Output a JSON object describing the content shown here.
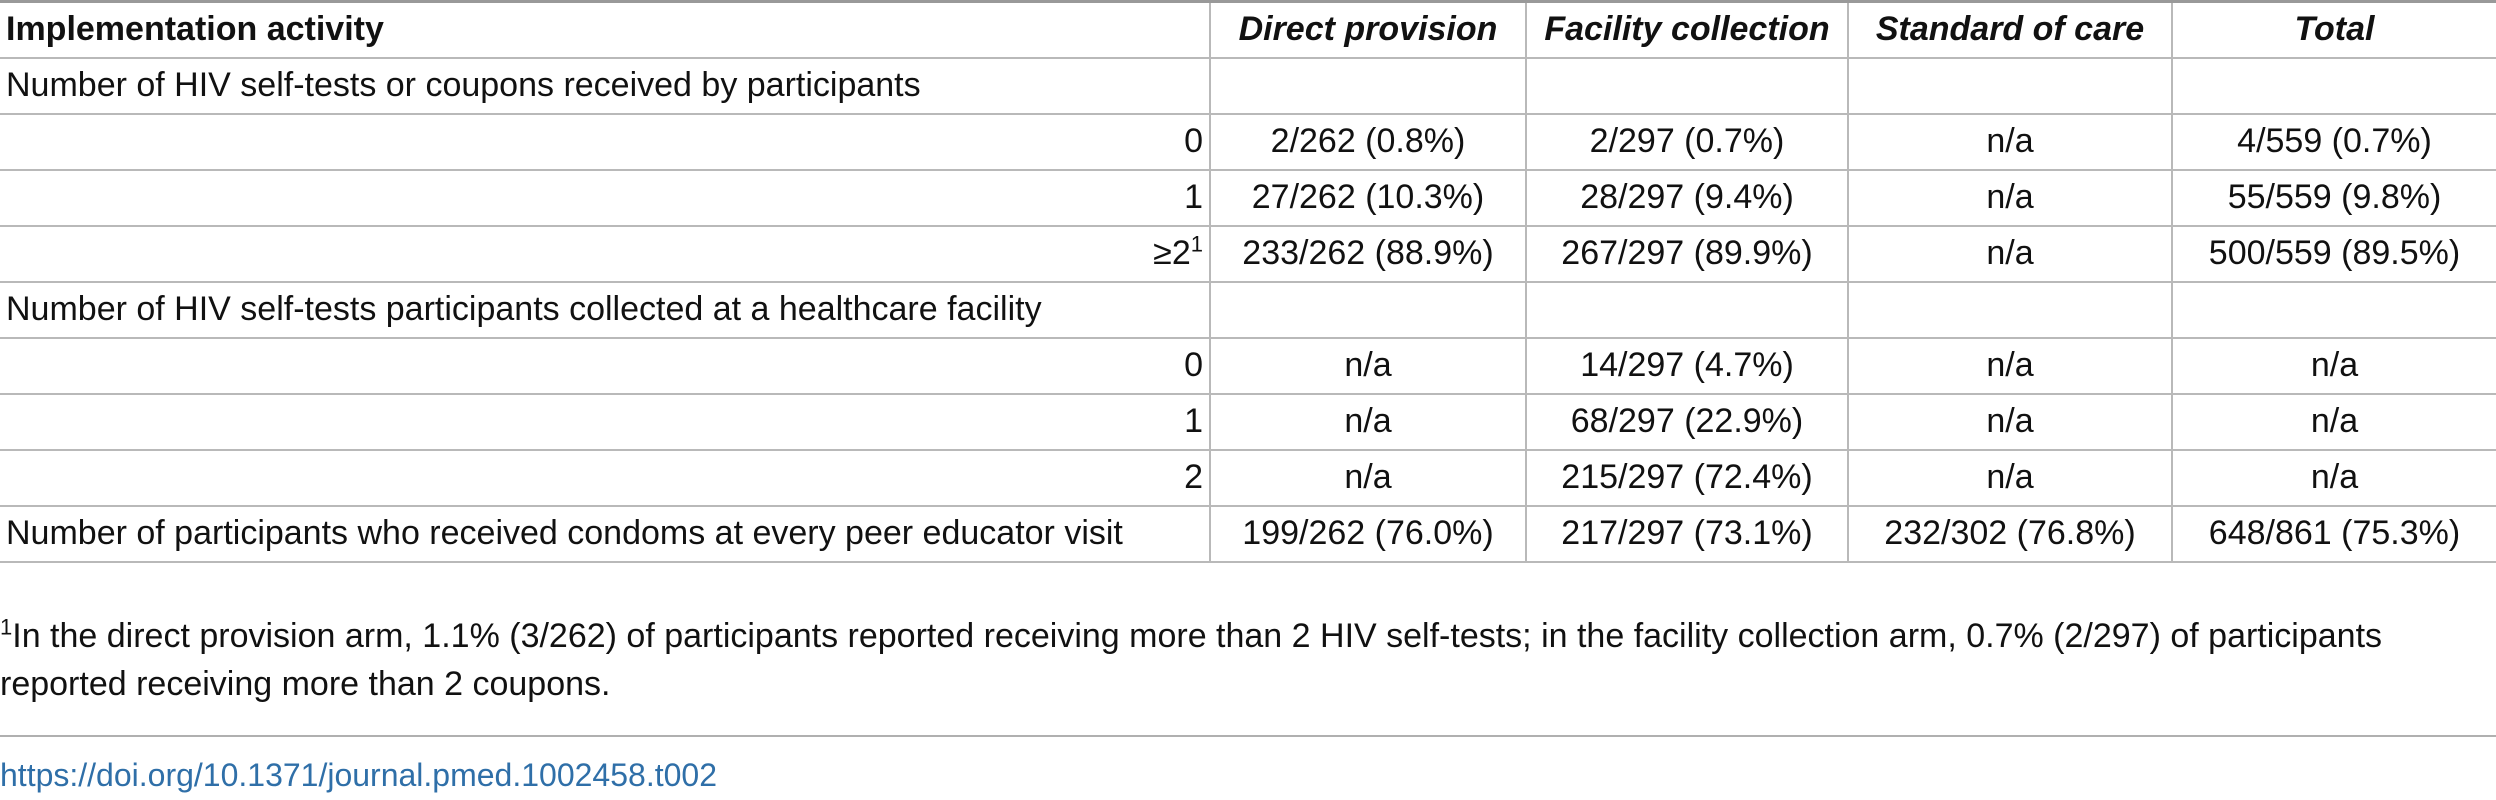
{
  "table": {
    "headers": [
      "Implementation activity",
      "Direct provision",
      "Facility collection",
      "Standard of care",
      "Total"
    ],
    "sections": [
      {
        "label": "Number of HIV self-tests or coupons received by participants",
        "rows": [
          {
            "label": "0",
            "values": [
              "2/262 (0.8%)",
              "2/297 (0.7%)",
              "n/a",
              "4/559 (0.7%)"
            ]
          },
          {
            "label": "1",
            "values": [
              "27/262 (10.3%)",
              "28/297 (9.4%)",
              "n/a",
              "55/559 (9.8%)"
            ]
          },
          {
            "label": "≥2",
            "sup": "1",
            "values": [
              "233/262 (88.9%)",
              "267/297 (89.9%)",
              "n/a",
              "500/559 (89.5%)"
            ]
          }
        ]
      },
      {
        "label": "Number of HIV self-tests participants collected at a healthcare facility",
        "rows": [
          {
            "label": "0",
            "values": [
              "n/a",
              "14/297 (4.7%)",
              "n/a",
              "n/a"
            ]
          },
          {
            "label": "1",
            "values": [
              "n/a",
              "68/297 (22.9%)",
              "n/a",
              "n/a"
            ]
          },
          {
            "label": "2",
            "values": [
              "n/a",
              "215/297 (72.4%)",
              "n/a",
              "n/a"
            ]
          }
        ]
      }
    ],
    "final_row": {
      "label": "Number of participants who received condoms at every peer educator visit",
      "values": [
        "199/262 (76.0%)",
        "217/297 (73.1%)",
        "232/302 (76.8%)",
        "648/861 (75.3%)"
      ]
    }
  },
  "footnote": {
    "marker": "1",
    "text": "In the direct provision arm, 1.1% (3/262) of participants reported receiving more than 2 HIV self-tests; in the facility collection arm, 0.7% (2/297) of participants reported receiving more than 2 coupons."
  },
  "doi": "https://doi.org/10.1371/journal.pmed.1002458.t002",
  "colors": {
    "link": "#2f6fa8",
    "grid": "#b9b9b9"
  }
}
